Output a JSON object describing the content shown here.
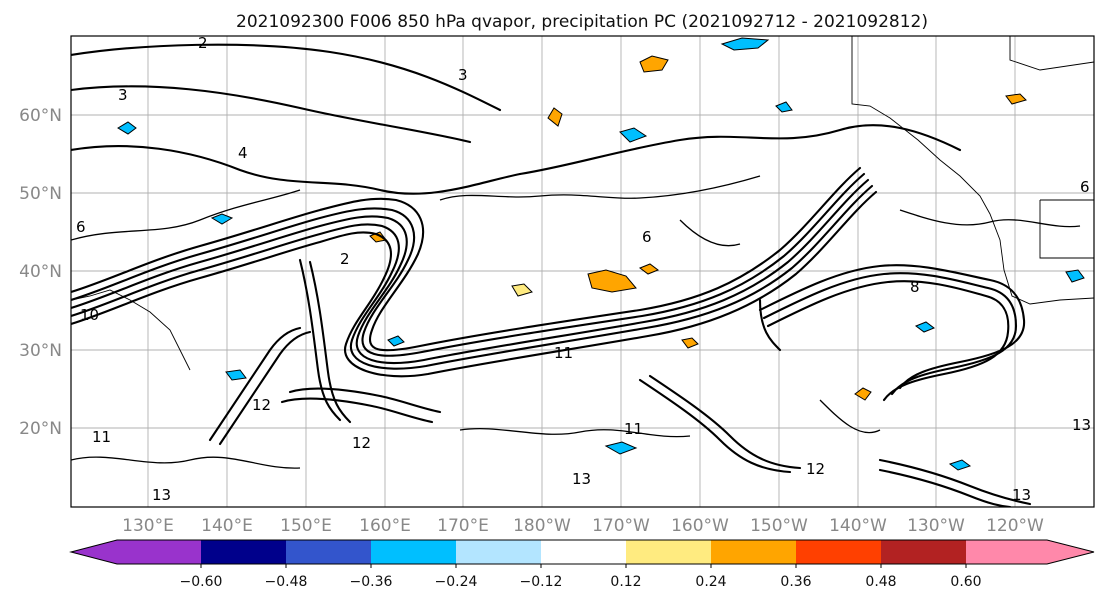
{
  "title": "2021092300 F006 850 hPa qvapor, precipitation PC (2021092712 - 2021092812)",
  "latitude_labels": [
    "60°N",
    "50°N",
    "40°N",
    "30°N",
    "20°N"
  ],
  "longitude_labels": [
    "130°E",
    "140°E",
    "150°E",
    "160°E",
    "170°E",
    "180°W",
    "170°W",
    "160°W",
    "150°W",
    "140°W",
    "130°W",
    "120°W"
  ],
  "colorbar": {
    "tick_labels": [
      "−0.60",
      "−0.48",
      "−0.36",
      "−0.24",
      "−0.12",
      "0.12",
      "0.24",
      "0.36",
      "0.48",
      "0.60"
    ],
    "colors": [
      "#9933cc",
      "#00008b",
      "#3355cc",
      "#00bfff",
      "#b3e5ff",
      "#ffffff",
      "#ffeb80",
      "#ffa500",
      "#ff4000",
      "#b22222",
      "#ff88aa"
    ]
  },
  "contour_labels": [
    "2",
    "3",
    "4",
    "6",
    "8",
    "10",
    "11",
    "12",
    "13"
  ]
}
